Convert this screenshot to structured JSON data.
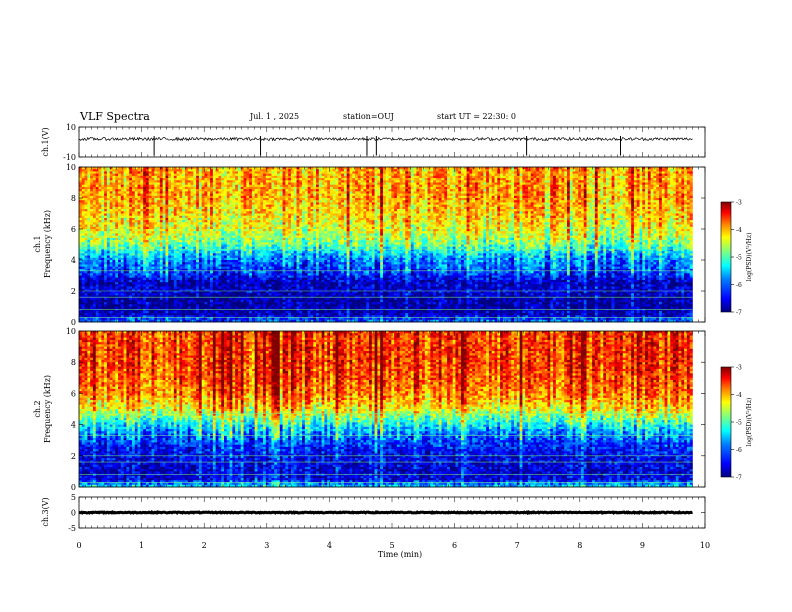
{
  "header": {
    "title": "VLF Spectra",
    "date": "Jul. 1 , 2025",
    "station": "station=OUJ",
    "start": "start UT = 22:30: 0"
  },
  "colors": {
    "frame": "#000000",
    "trace": "#000000",
    "colormap": [
      "#00007f",
      "#0000ff",
      "#007fff",
      "#00ffff",
      "#7fff7f",
      "#ffff00",
      "#ff7f00",
      "#ff0000",
      "#7f0000"
    ]
  },
  "chart_data": [
    {
      "type": "line",
      "name": "ch1-waveform",
      "ylabel": "ch.1(V)",
      "ylim": [
        -10,
        10
      ],
      "yticks": [
        "10",
        "-10"
      ],
      "xlim": [
        0,
        10
      ],
      "baseline": 2,
      "noise_amplitude": 1.0,
      "spikes_at_min": [
        1.2,
        2.9,
        4.6,
        4.75,
        7.15,
        8.65
      ]
    },
    {
      "type": "heatmap",
      "name": "ch1-spectrogram",
      "ylabel": "ch.1\nFrequency (kHz)",
      "ylabel_lines": [
        "ch.1",
        "Frequency (kHz)"
      ],
      "yticks": [
        "0",
        "2",
        "4",
        "6",
        "8",
        "10"
      ],
      "ylim": [
        0,
        10
      ],
      "xlim": [
        0,
        9.8
      ],
      "colorbar": {
        "label": "log(PSD)(V²/Hz)",
        "ticks": [
          "-3",
          "-4",
          "-5",
          "-6",
          "-7"
        ],
        "range": [
          -7,
          -3
        ]
      },
      "mean_log_psd": {
        "freq_khz": [
          0,
          0.5,
          1,
          1.5,
          2,
          2.5,
          3,
          3.5,
          4,
          4.5,
          5,
          6,
          7,
          8,
          9,
          10
        ],
        "value": [
          -6.0,
          -6.8,
          -6.9,
          -6.9,
          -6.7,
          -6.8,
          -6.4,
          -6.2,
          -6.0,
          -5.6,
          -5.1,
          -4.6,
          -4.4,
          -4.2,
          -4.2,
          -4.2
        ]
      },
      "horizontal_lines_khz": [
        0.3,
        0.8,
        1.6,
        2.0,
        3.3,
        4.7
      ]
    },
    {
      "type": "heatmap",
      "name": "ch2-spectrogram",
      "ylabel": "ch.2\nFrequency (kHz)",
      "ylabel_lines": [
        "ch.2",
        "Frequency (kHz)"
      ],
      "yticks": [
        "0",
        "2",
        "4",
        "6",
        "8",
        "10"
      ],
      "ylim": [
        0,
        10
      ],
      "xlim": [
        0,
        9.8
      ],
      "colorbar": {
        "label": "log(PSD)(V²/Hz)",
        "ticks": [
          "-3",
          "-4",
          "-5",
          "-6",
          "-7"
        ],
        "range": [
          -7,
          -3
        ]
      },
      "mean_log_psd": {
        "freq_khz": [
          0,
          0.5,
          1,
          1.5,
          2,
          2.5,
          3,
          3.5,
          4,
          4.5,
          5,
          6,
          7,
          8,
          9,
          10
        ],
        "value": [
          -5.6,
          -6.6,
          -6.7,
          -6.6,
          -6.6,
          -6.4,
          -6.2,
          -5.9,
          -5.5,
          -5.0,
          -4.5,
          -4.0,
          -3.8,
          -3.7,
          -3.7,
          -3.7
        ]
      },
      "horizontal_lines_khz": [
        0.3,
        0.8,
        1.6,
        2.0,
        3.3,
        4.7
      ]
    },
    {
      "type": "line",
      "name": "ch3-waveform",
      "ylabel": "ch.3(V)",
      "ylim": [
        -5,
        5
      ],
      "yticks": [
        "5",
        "0",
        "-5"
      ],
      "xlim": [
        0,
        10
      ],
      "baseline": 0,
      "noise_amplitude": 0.15
    }
  ],
  "xaxis": {
    "label": "Time (min)",
    "ticks": [
      "0",
      "1",
      "2",
      "3",
      "4",
      "5",
      "6",
      "7",
      "8",
      "9",
      "10"
    ],
    "range": [
      0,
      10
    ]
  }
}
